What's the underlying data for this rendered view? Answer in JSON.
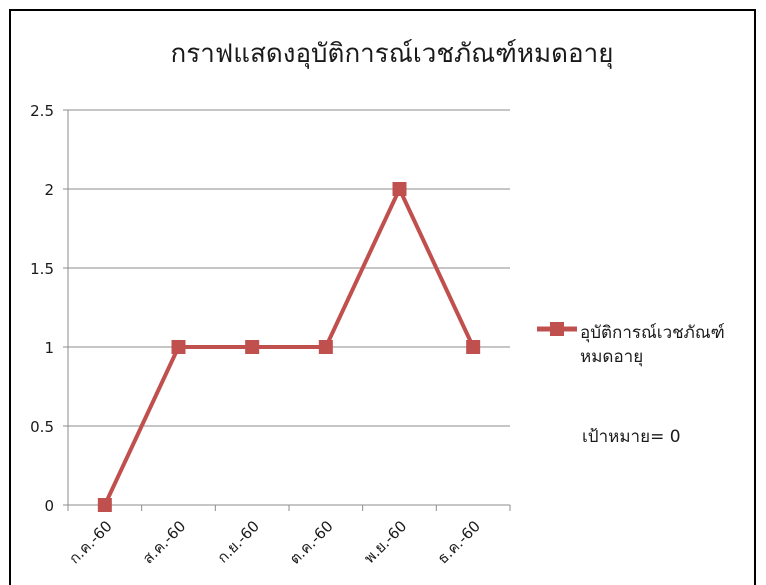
{
  "chart_data": {
    "type": "line",
    "title": "กราฟแสดงอุบัติการณ์เวชภัณฑ์หมดอายุ",
    "categories": [
      "ก.ค.-60",
      "ส.ค.-60",
      "ก.ย.-60",
      "ต.ค.-60",
      "พ.ย.-60",
      "ธ.ค.-60"
    ],
    "series": [
      {
        "name": "อุบัติการณ์เวชภัณฑ์หมดอายุ",
        "values": [
          0,
          1,
          1,
          1,
          2,
          1
        ],
        "color": "#c0504d",
        "marker": "square"
      }
    ],
    "y_ticks": [
      "0",
      "0.5",
      "1",
      "1.5",
      "2",
      "2.5"
    ],
    "ylim": [
      0,
      2.5
    ],
    "grid": true,
    "legend_position": "right",
    "annotation": "เป้าหมาย= 0"
  }
}
